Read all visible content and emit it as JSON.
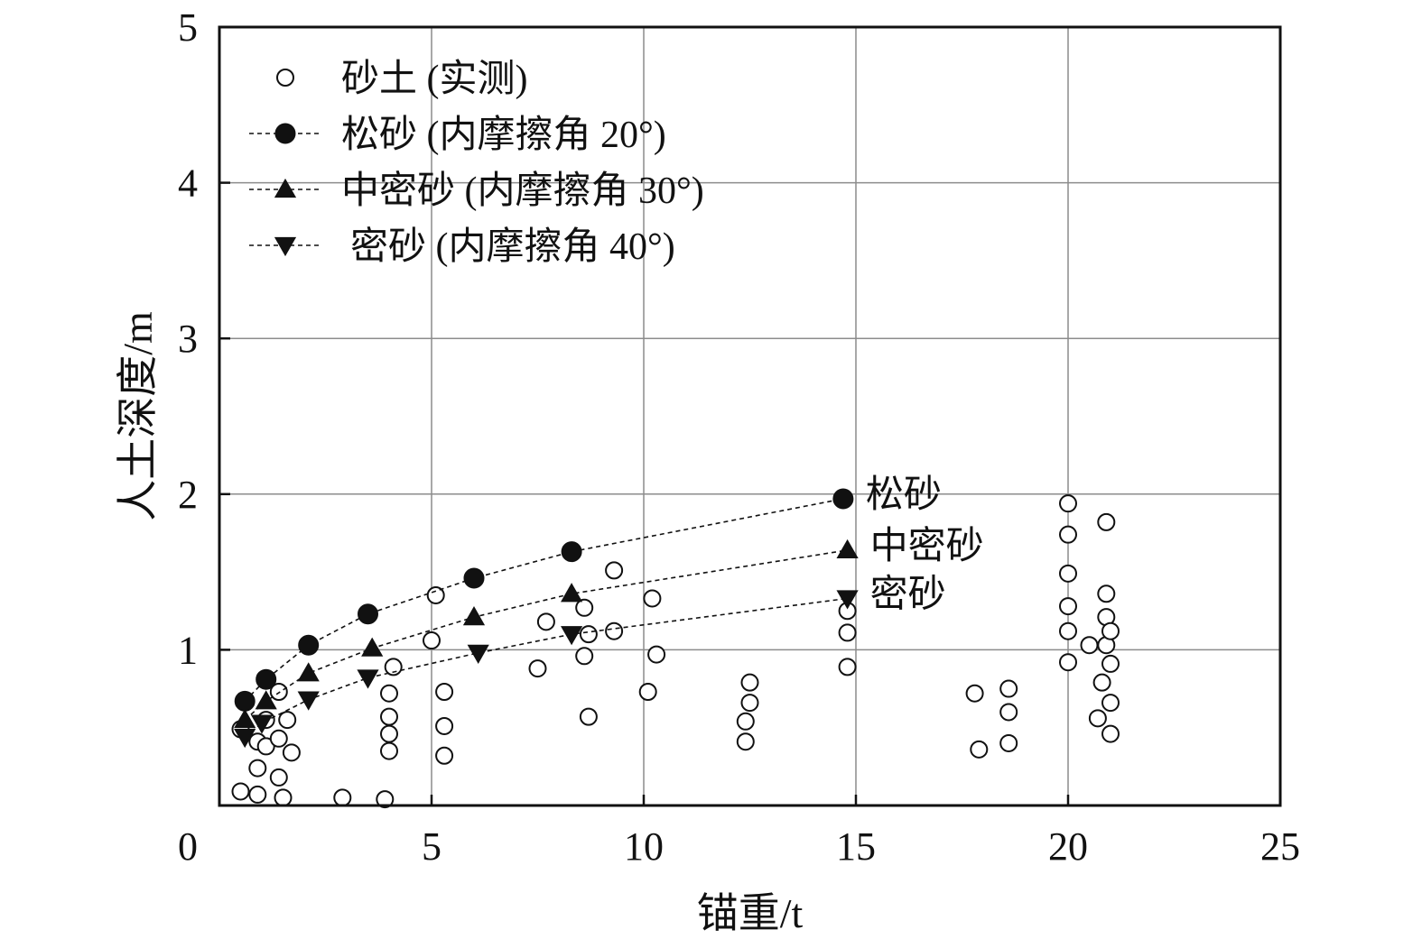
{
  "chart_data": {
    "type": "scatter",
    "xlabel": "锚重/t",
    "ylabel": "人土深度/m",
    "xlim": [
      0,
      25
    ],
    "ylim": [
      0,
      5
    ],
    "x_ticks": [
      0,
      5,
      10,
      15,
      20,
      25
    ],
    "y_ticks": [
      1,
      2,
      3,
      4,
      5
    ],
    "grid": true,
    "legend_position": "top-left",
    "colors": {
      "ink": "#111111",
      "grid": "#8c8c8c",
      "background": "#ffffff"
    },
    "series": [
      {
        "name": "砂土 (实测)",
        "marker": "open-circle",
        "line": false,
        "points": [
          [
            0.5,
            0.09
          ],
          [
            0.9,
            0.07
          ],
          [
            1.5,
            0.05
          ],
          [
            2.9,
            0.05
          ],
          [
            3.9,
            0.04
          ],
          [
            0.5,
            0.49
          ],
          [
            0.9,
            0.41
          ],
          [
            1.1,
            0.38
          ],
          [
            1.1,
            0.55
          ],
          [
            1.4,
            0.73
          ],
          [
            1.4,
            0.43
          ],
          [
            1.6,
            0.55
          ],
          [
            1.7,
            0.34
          ],
          [
            1.4,
            0.18
          ],
          [
            0.9,
            0.24
          ],
          [
            4.1,
            0.89
          ],
          [
            4.0,
            0.72
          ],
          [
            4.0,
            0.57
          ],
          [
            4.0,
            0.46
          ],
          [
            4.0,
            0.35
          ],
          [
            5.1,
            1.35
          ],
          [
            5.0,
            1.06
          ],
          [
            5.3,
            0.73
          ],
          [
            5.3,
            0.51
          ],
          [
            5.3,
            0.32
          ],
          [
            7.5,
            0.88
          ],
          [
            7.7,
            1.18
          ],
          [
            8.6,
            1.27
          ],
          [
            8.7,
            1.1
          ],
          [
            8.6,
            0.96
          ],
          [
            8.7,
            0.57
          ],
          [
            9.3,
            1.51
          ],
          [
            9.3,
            1.12
          ],
          [
            10.2,
            1.33
          ],
          [
            10.3,
            0.97
          ],
          [
            10.1,
            0.73
          ],
          [
            12.5,
            0.79
          ],
          [
            12.5,
            0.66
          ],
          [
            12.4,
            0.54
          ],
          [
            12.4,
            0.41
          ],
          [
            14.8,
            1.25
          ],
          [
            14.8,
            1.11
          ],
          [
            14.8,
            0.89
          ],
          [
            17.8,
            0.72
          ],
          [
            17.9,
            0.36
          ],
          [
            18.6,
            0.75
          ],
          [
            18.6,
            0.6
          ],
          [
            18.6,
            0.4
          ],
          [
            20.0,
            1.94
          ],
          [
            20.0,
            1.74
          ],
          [
            20.0,
            1.49
          ],
          [
            20.0,
            1.28
          ],
          [
            20.0,
            1.12
          ],
          [
            20.0,
            0.92
          ],
          [
            20.5,
            1.03
          ],
          [
            20.9,
            1.82
          ],
          [
            20.9,
            1.36
          ],
          [
            20.9,
            1.21
          ],
          [
            20.9,
            1.03
          ],
          [
            20.8,
            0.79
          ],
          [
            20.7,
            0.56
          ],
          [
            21.0,
            0.66
          ],
          [
            21.0,
            1.12
          ],
          [
            21.0,
            0.91
          ],
          [
            21.0,
            0.46
          ]
        ]
      },
      {
        "name": "松砂 (内摩擦角 20°)",
        "marker": "filled-circle",
        "line": "dashed",
        "end_label": "松砂",
        "points": [
          [
            0.6,
            0.67
          ],
          [
            1.1,
            0.81
          ],
          [
            2.1,
            1.03
          ],
          [
            3.5,
            1.23
          ],
          [
            6.0,
            1.46
          ],
          [
            8.3,
            1.63
          ],
          [
            14.7,
            1.97
          ]
        ]
      },
      {
        "name": "中密砂 (内摩擦角 30°)",
        "marker": "filled-triangle-up",
        "line": "dashed",
        "end_label": "中密砂",
        "points": [
          [
            0.6,
            0.55
          ],
          [
            1.1,
            0.67
          ],
          [
            2.1,
            0.85
          ],
          [
            3.6,
            1.01
          ],
          [
            6.0,
            1.21
          ],
          [
            8.3,
            1.36
          ],
          [
            14.8,
            1.64
          ]
        ]
      },
      {
        "name": "密砂 (内摩擦角 40°)",
        "marker": "filled-triangle-down",
        "line": "dashed",
        "end_label": "密砂",
        "points": [
          [
            0.6,
            0.44
          ],
          [
            1.0,
            0.53
          ],
          [
            2.1,
            0.68
          ],
          [
            3.5,
            0.82
          ],
          [
            6.1,
            0.98
          ],
          [
            8.3,
            1.1
          ],
          [
            14.8,
            1.33
          ]
        ]
      }
    ]
  }
}
